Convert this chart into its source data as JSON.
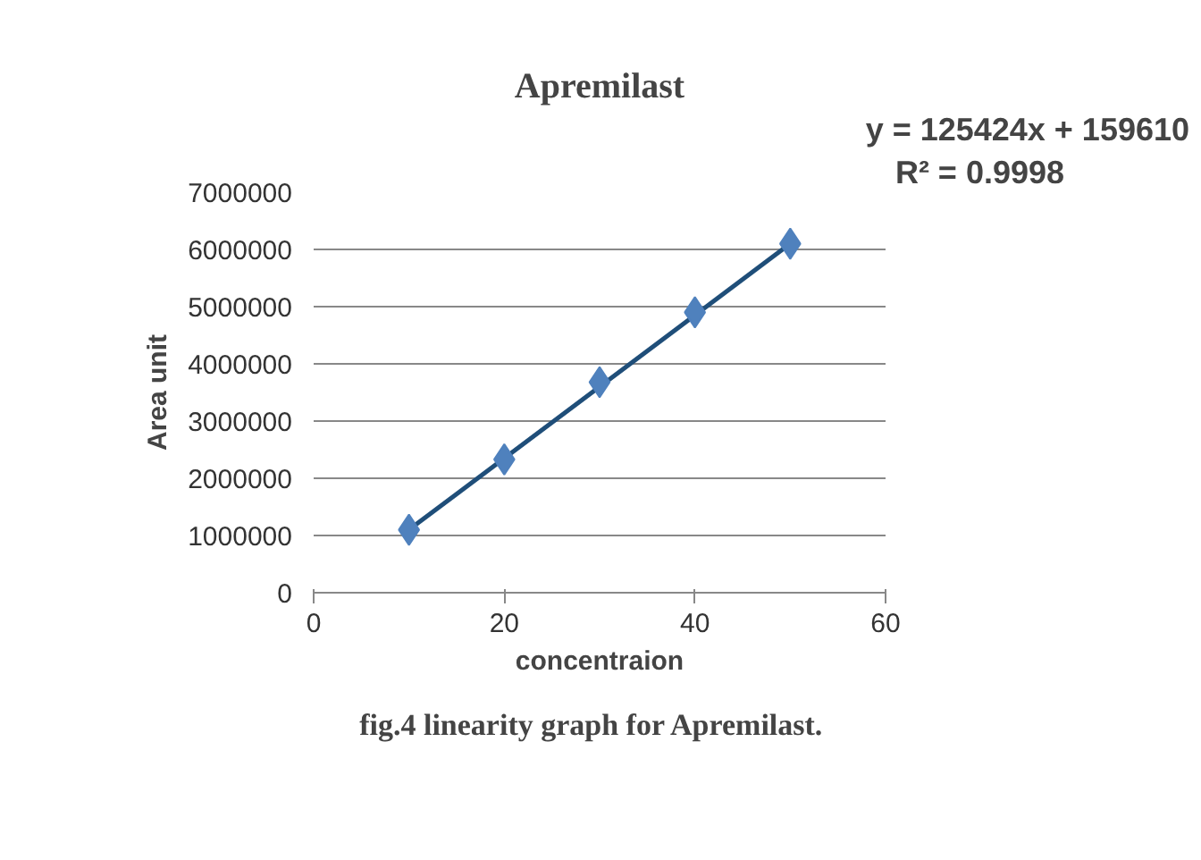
{
  "chart_data": {
    "type": "scatter",
    "title": "Apremilast",
    "xlabel": "concentraion",
    "ylabel": "Area unit",
    "series": [
      {
        "color": "#4f81bd",
        "x": [
          10,
          20,
          30,
          40,
          50
        ],
        "values": [
          1100000,
          2330000,
          3680000,
          4900000,
          6100000
        ],
        "marker": "diamond"
      },
      {
        "type": "line",
        "color": "#1f4e79",
        "x": [
          10,
          50
        ],
        "values": [
          1100000,
          6100000
        ],
        "line_style": "solid"
      }
    ],
    "xlim": [
      0,
      60
    ],
    "xticks": [
      0,
      20,
      40,
      60
    ],
    "ylim": [
      0,
      7000000
    ],
    "yticks": [
      0,
      1000000,
      2000000,
      3000000,
      4000000,
      5000000,
      6000000,
      7000000
    ],
    "grid": "y",
    "annotations": [
      "y = 125424x + 159610",
      "R² = 0.9998",
      "fig.4  linearity  graph for Apremilast."
    ]
  }
}
